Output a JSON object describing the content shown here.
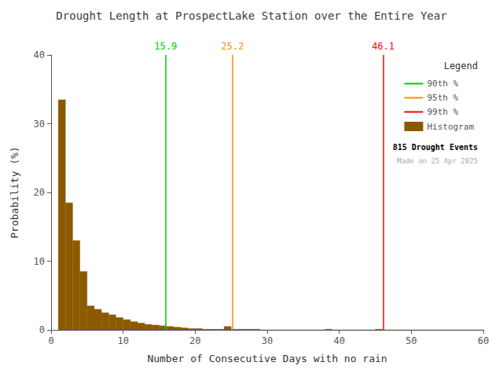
{
  "chart_data": {
    "type": "histogram",
    "title": "Drought Length at ProspectLake Station over the Entire Year",
    "x_label": "Number of Consecutive Days with no rain",
    "y_label": "Probability (%)",
    "bins": [
      1,
      2,
      3,
      4,
      5,
      6,
      7,
      8,
      9,
      10,
      11,
      12,
      13,
      14,
      15,
      16,
      17,
      18,
      19,
      20,
      21,
      22,
      23,
      24,
      25,
      26,
      27,
      28,
      29,
      30,
      31,
      32,
      33,
      34,
      35,
      36,
      37,
      38,
      39,
      40,
      41,
      42,
      43,
      44,
      45,
      46,
      47,
      48,
      49,
      50,
      51,
      52,
      53,
      54,
      55,
      56,
      57,
      58,
      59,
      60
    ],
    "series": [
      {
        "name": "Histogram",
        "color": "#8B5A00",
        "values": [
          33.5,
          18.5,
          13.0,
          8.5,
          3.5,
          3.0,
          2.5,
          2.2,
          1.8,
          1.5,
          1.2,
          1.0,
          0.8,
          0.7,
          0.6,
          0.5,
          0.4,
          0.3,
          0.2,
          0.2,
          0.1,
          0.1,
          0.1,
          0.5,
          0.1,
          0.1,
          0.1,
          0.1,
          0.0,
          0.0,
          0.0,
          0.0,
          0.0,
          0.0,
          0.0,
          0.0,
          0.0,
          0.1,
          0.0,
          0.0,
          0.0,
          0.0,
          0.0,
          0.0,
          0.1,
          0.0,
          0.0,
          0.0,
          0.0,
          0.0,
          0.0,
          0.0,
          0.0,
          0.0,
          0.0,
          0.0,
          0.0,
          0.0,
          0.0
        ]
      }
    ],
    "percentile_lines": [
      {
        "name": "90th %",
        "value": 15.9,
        "color": "#00CC00"
      },
      {
        "name": "95th %",
        "value": 25.2,
        "color": "#FF8C00"
      },
      {
        "name": "99th %",
        "value": 46.1,
        "color": "#FF0000"
      }
    ],
    "annotations": [
      "815 Drought Events",
      "Made on 25 Apr 2025"
    ],
    "xlim": [
      0,
      60
    ],
    "ylim": [
      0,
      40
    ],
    "xticks": [
      0,
      10,
      20,
      30,
      40,
      50,
      60
    ],
    "yticks": [
      0,
      10,
      20,
      30,
      40
    ],
    "grid": false,
    "legend": "upper right",
    "legend_title": "Legend"
  }
}
